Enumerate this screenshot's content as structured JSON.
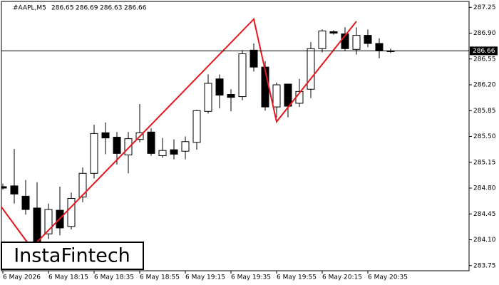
{
  "chart_data": {
    "type": "candlestick",
    "symbol": "#AAPL,M5",
    "header_ohlc": [
      286.65,
      286.69,
      286.63,
      286.66
    ],
    "watermark": "InstaFintech",
    "categories": [
      "6 May 2026",
      null,
      null,
      null,
      "6 May 18:15",
      null,
      null,
      null,
      "6 May 18:35",
      null,
      null,
      null,
      "6 May 18:55",
      null,
      null,
      null,
      "6 May 19:15",
      null,
      null,
      null,
      "6 May 19:35",
      null,
      null,
      null,
      "6 May 19:55",
      null,
      null,
      null,
      "6 May 20:15",
      null,
      null,
      null,
      "6 May 20:35",
      null,
      null
    ],
    "open": [
      284.82,
      284.83,
      284.69,
      284.53,
      284.18,
      284.5,
      284.28,
      284.68,
      285.0,
      285.55,
      285.49,
      285.25,
      285.46,
      285.56,
      285.24,
      285.32,
      285.3,
      285.42,
      285.84,
      286.28,
      286.07,
      286.04,
      286.67,
      286.44,
      285.9,
      286.21,
      285.95,
      286.14,
      286.69,
      286.92,
      286.89,
      286.68,
      286.87,
      286.76,
      286.65
    ],
    "high": [
      284.86,
      285.33,
      284.91,
      284.88,
      284.59,
      284.82,
      284.74,
      285.08,
      285.66,
      285.69,
      285.56,
      285.56,
      285.94,
      285.61,
      285.48,
      285.46,
      285.5,
      285.86,
      286.34,
      286.34,
      286.14,
      286.67,
      286.76,
      286.52,
      286.23,
      286.21,
      286.28,
      286.78,
      286.95,
      286.94,
      286.98,
      286.98,
      286.95,
      286.83,
      286.69
    ],
    "low": [
      284.78,
      284.59,
      284.44,
      284.01,
      284.11,
      284.16,
      284.24,
      284.61,
      284.93,
      285.26,
      285.12,
      285.0,
      285.42,
      285.24,
      285.21,
      285.19,
      285.19,
      285.32,
      285.81,
      285.88,
      285.84,
      285.99,
      286.38,
      285.85,
      285.76,
      285.76,
      285.9,
      286.02,
      286.64,
      286.88,
      286.66,
      286.61,
      286.71,
      286.56,
      286.63
    ],
    "close": [
      284.8,
      284.72,
      284.51,
      284.06,
      284.51,
      284.26,
      284.66,
      285.0,
      285.54,
      285.48,
      285.27,
      285.47,
      285.55,
      285.27,
      285.31,
      285.26,
      285.43,
      285.85,
      286.22,
      286.06,
      286.03,
      286.62,
      286.44,
      285.9,
      286.2,
      285.91,
      286.11,
      286.69,
      286.93,
      286.9,
      286.69,
      286.87,
      286.76,
      286.66,
      286.66
    ],
    "up_color": "#ffffff",
    "down_color": "#000000",
    "current_price": 286.66,
    "pattern": {
      "color": "#e8161b",
      "x": [
        -0.3,
        2.5,
        22,
        24,
        31
      ],
      "values": [
        284.58,
        283.99,
        287.09,
        285.7,
        287.06
      ]
    },
    "ylim": [
      283.68,
      287.33
    ],
    "yticks": [
      287.25,
      {
        "value": 286.9,
        "label": "286.90"
      },
      286.55,
      {
        "value": 286.2,
        "label": "286.20"
      },
      285.85,
      {
        "value": 285.5,
        "label": "285.50"
      },
      285.15,
      {
        "value": 284.8,
        "label": "284.80"
      },
      284.45,
      {
        "value": 284.1,
        "label": "284.10"
      },
      283.75
    ]
  }
}
